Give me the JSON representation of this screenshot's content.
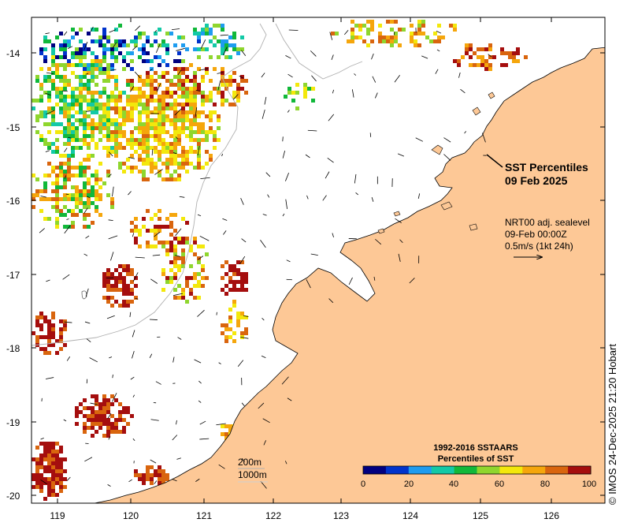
{
  "map": {
    "title_line1": "SST Percentiles",
    "title_line2": "09 Feb 2025",
    "current_info": {
      "line1": "NRT00 adj. sealevel",
      "line2": "09-Feb 00:00Z",
      "line3": "0.5m/s (1kt 24h)"
    },
    "isobaths": [
      "200m",
      "1000m"
    ],
    "lat_labels": [
      "-14",
      "-15",
      "-16",
      "-17",
      "-18",
      "-19",
      "-20"
    ],
    "lon_labels": [
      "119",
      "120",
      "121",
      "122",
      "123",
      "124",
      "125",
      "126"
    ],
    "credit": "© IMOS 24-Dec-2025 21:20 Hobart",
    "land_color": "#fdc896",
    "ocean_color": "#ffffff"
  },
  "colorbar": {
    "title_line1": "1992-2016 SSTAARS",
    "title_line2": "Percentiles of SST",
    "ticks": [
      "0",
      "20",
      "40",
      "60",
      "80",
      "100"
    ],
    "colors": [
      "#000080",
      "#0033cc",
      "#1e9cf0",
      "#13c9a6",
      "#11b83a",
      "#8fd62e",
      "#f3e80c",
      "#f5a60c",
      "#d9650e",
      "#a50e0e"
    ]
  }
}
